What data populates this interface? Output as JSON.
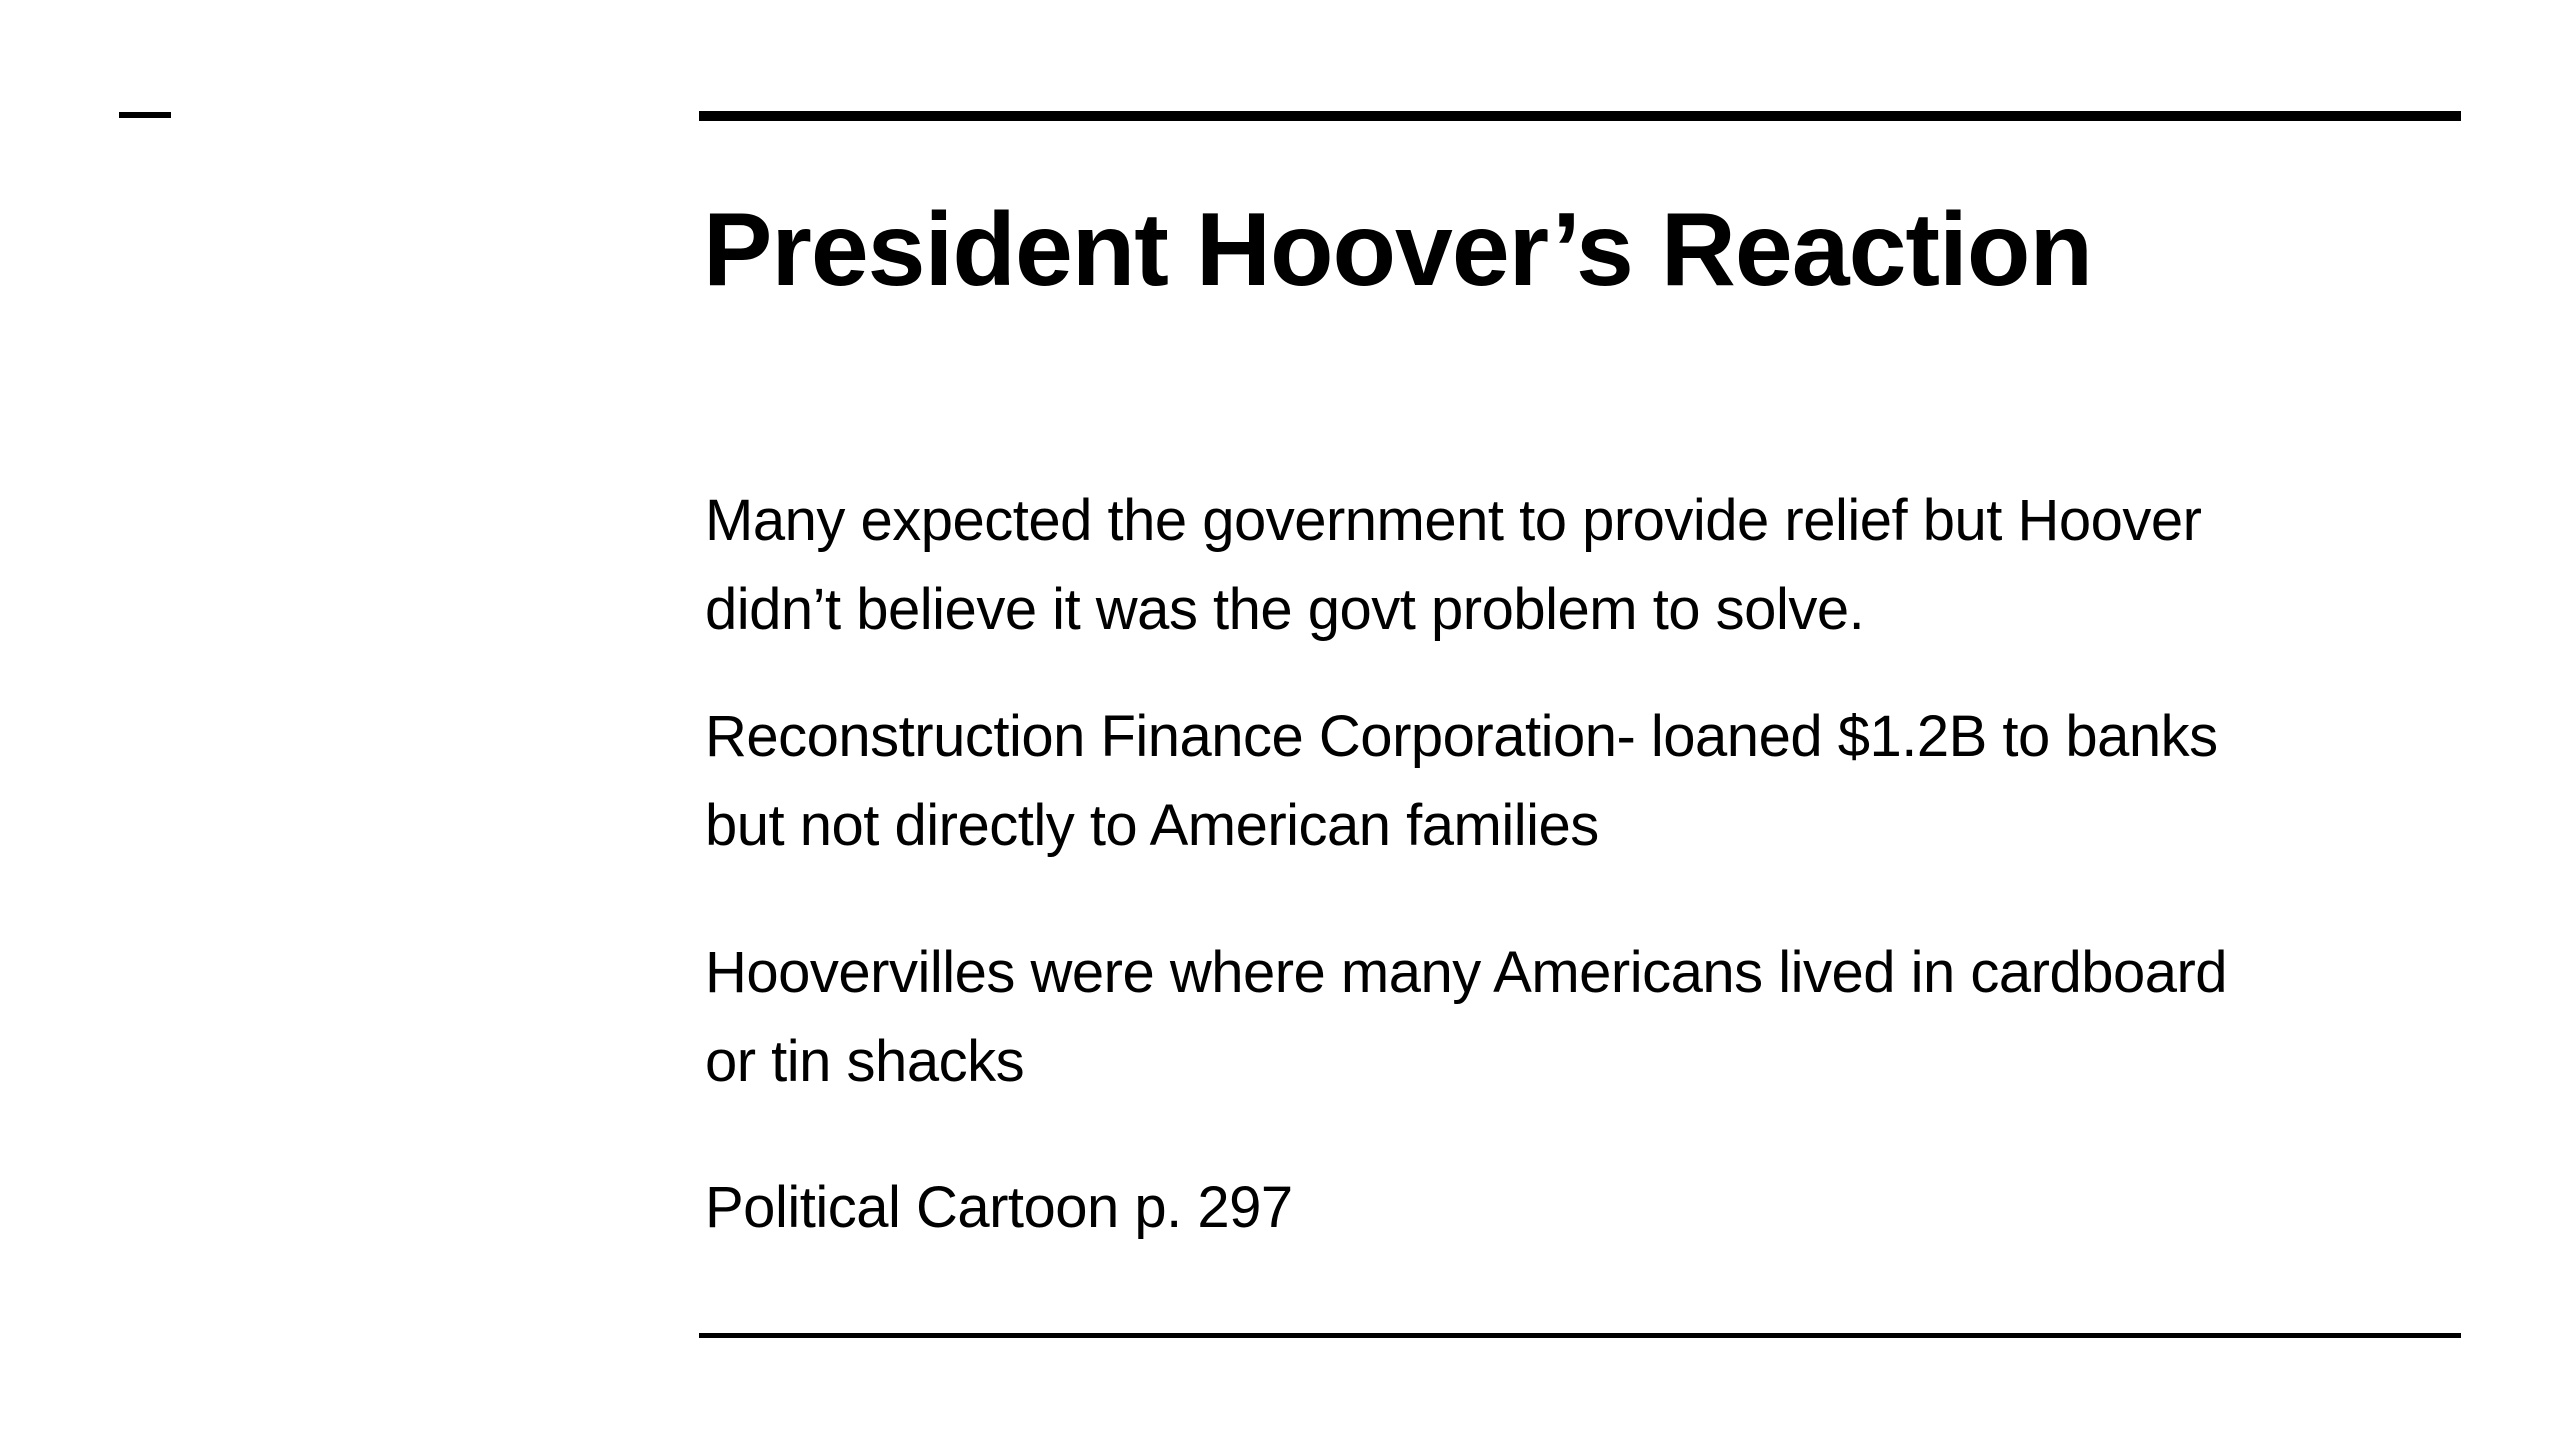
{
  "slide": {
    "title": "President Hoover’s Reaction",
    "paragraphs": [
      {
        "lines": [
          "Many expected the government to provide relief but Hoover",
          "didn’t believe it was the govt problem to solve."
        ]
      },
      {
        "lines": [
          "Reconstruction Finance Corporation- loaned $1.2B to banks",
          "but not directly to American families"
        ]
      },
      {
        "lines": [
          "Hoovervilles were where many Americans lived in cardboard",
          "or tin shacks"
        ]
      },
      {
        "lines": [
          "Political Cartoon p. 297"
        ]
      }
    ]
  }
}
